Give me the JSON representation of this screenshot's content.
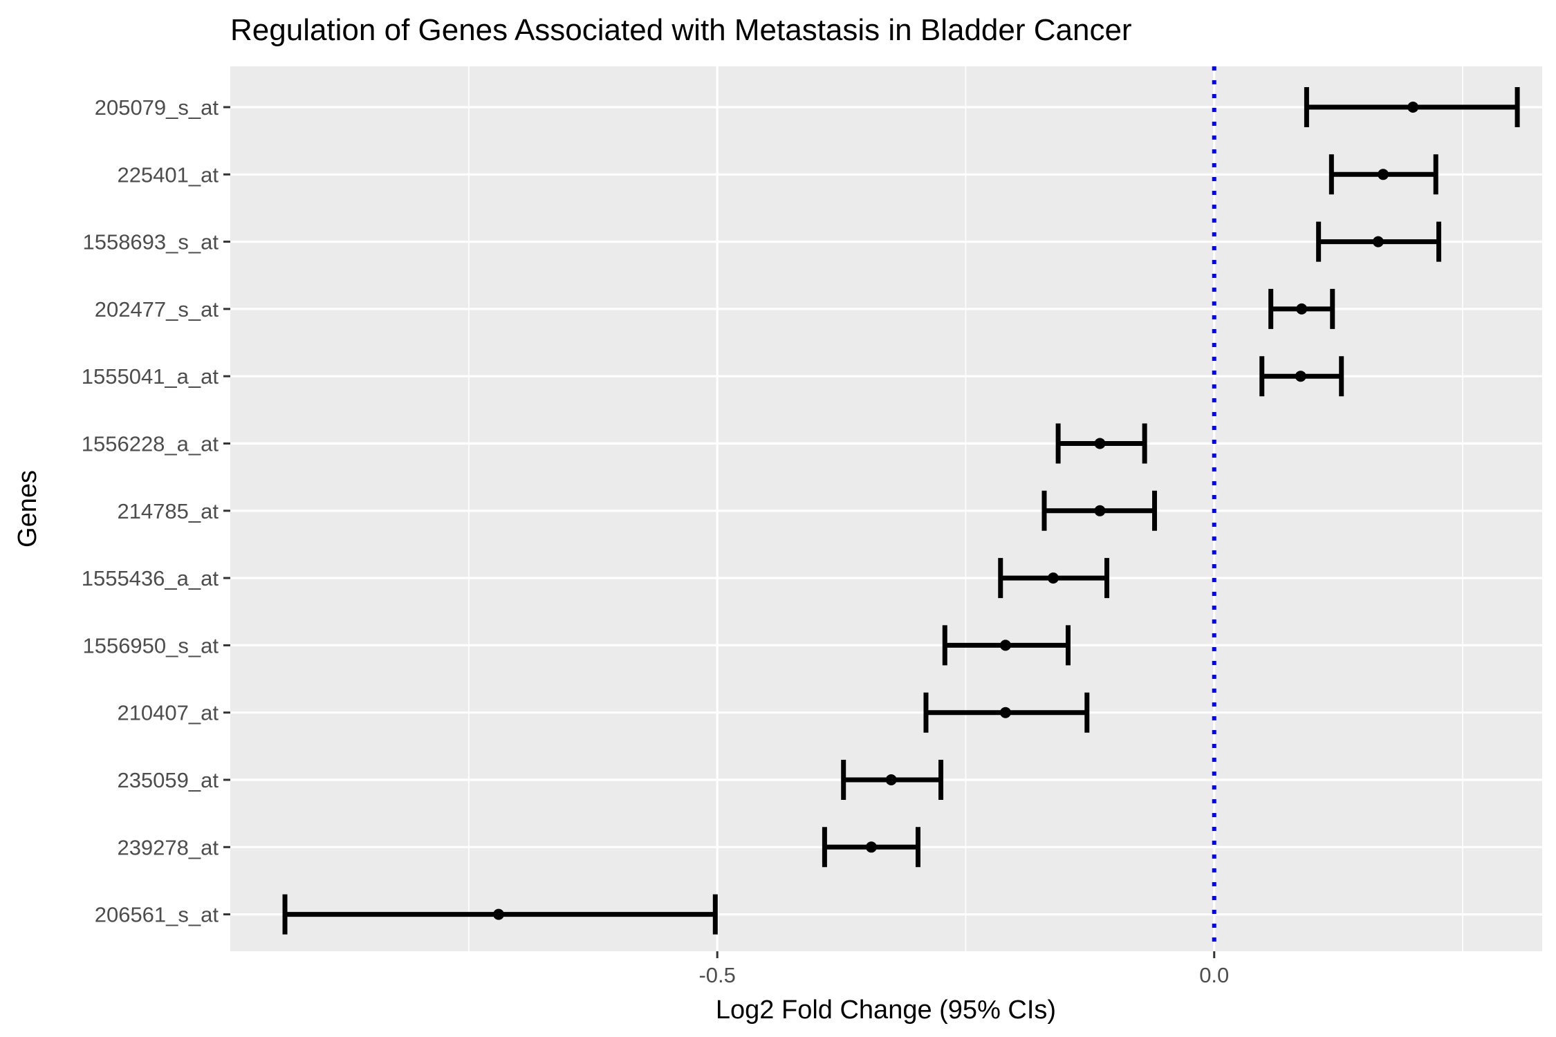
{
  "chart_data": {
    "type": "errorbar",
    "title": "Regulation of Genes Associated with Metastasis in Bladder Cancer",
    "xlabel": "Log2 Fold Change (95% CIs)",
    "ylabel": "Genes",
    "xlim": [
      -0.99,
      0.33
    ],
    "x_ticks": [
      -0.5,
      0.0
    ],
    "x_tick_labels": [
      "-0.5",
      "0.0"
    ],
    "x_minor_gridlines": [
      -0.75,
      -0.25,
      0.25
    ],
    "reference_line": {
      "x": 0.0,
      "style": "dotted",
      "color": "#0000ff"
    },
    "grid": true,
    "categories": [
      "205079_s_at",
      "225401_at",
      "1558693_s_at",
      "202477_s_at",
      "1555041_a_at",
      "1556228_a_at",
      "214785_at",
      "1555436_a_at",
      "1556950_s_at",
      "210407_at",
      "235059_at",
      "239278_at",
      "206561_s_at"
    ],
    "estimate": [
      0.2,
      0.17,
      0.165,
      0.088,
      0.087,
      -0.115,
      -0.115,
      -0.162,
      -0.21,
      -0.21,
      -0.325,
      -0.345,
      -0.72
    ],
    "ci_low": [
      0.093,
      0.118,
      0.105,
      0.057,
      0.048,
      -0.157,
      -0.171,
      -0.215,
      -0.271,
      -0.29,
      -0.373,
      -0.392,
      -0.935
    ],
    "ci_high": [
      0.305,
      0.223,
      0.226,
      0.119,
      0.128,
      -0.07,
      -0.06,
      -0.108,
      -0.147,
      -0.128,
      -0.275,
      -0.298,
      -0.502
    ],
    "colors": {
      "panel": "#ebebeb",
      "grid": "#ffffff",
      "mark": "#000000",
      "reference": "#0000ff"
    }
  }
}
